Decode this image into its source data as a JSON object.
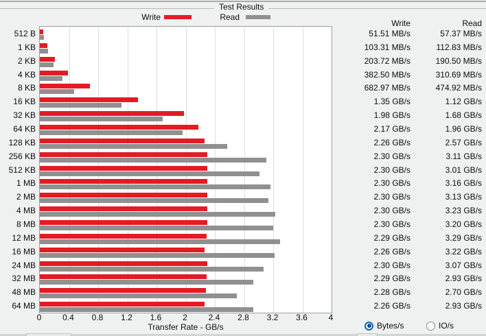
{
  "group_box": {
    "title": "Test Results"
  },
  "legend": {
    "write_label": "Write",
    "read_label": "Read",
    "write_color": "#e31b23",
    "read_color": "#909090"
  },
  "chart_data": {
    "type": "bar",
    "orientation": "horizontal",
    "title": "Test Results",
    "xlabel": "Transfer Rate - GB/s",
    "ylabel": "",
    "xlim": [
      0,
      4
    ],
    "xticks": [
      "0",
      "0.4",
      "0.8",
      "1.2",
      "1.6",
      "2",
      "2.4",
      "2.8",
      "3.2",
      "3.6",
      "4"
    ],
    "grid": true,
    "legend_position": "top",
    "categories": [
      "512 B",
      "1 KB",
      "2 KB",
      "4 KB",
      "8 KB",
      "16 KB",
      "32 KB",
      "64 KB",
      "128 KB",
      "256 KB",
      "512 KB",
      "1 MB",
      "2 MB",
      "4 MB",
      "8 MB",
      "12 MB",
      "16 MB",
      "24 MB",
      "32 MB",
      "48 MB",
      "64 MB"
    ],
    "series": [
      {
        "name": "Write",
        "color": "#e31b23",
        "values": [
          0.05151,
          0.10331,
          0.20372,
          0.3825,
          0.68297,
          1.35,
          1.98,
          2.17,
          2.26,
          2.3,
          2.3,
          2.3,
          2.3,
          2.3,
          2.3,
          2.29,
          2.26,
          2.3,
          2.29,
          2.28,
          2.26
        ]
      },
      {
        "name": "Read",
        "color": "#909090",
        "values": [
          0.05737,
          0.11283,
          0.1905,
          0.31069,
          0.47492,
          1.12,
          1.68,
          1.96,
          2.57,
          3.11,
          3.01,
          3.16,
          3.13,
          3.23,
          3.2,
          3.29,
          3.22,
          3.07,
          2.93,
          2.7,
          2.93
        ]
      }
    ]
  },
  "results_table": {
    "write_header": "Write",
    "read_header": "Read",
    "rows": [
      {
        "write": "51.51 MB/s",
        "read": "57.37 MB/s"
      },
      {
        "write": "103.31 MB/s",
        "read": "112.83 MB/s"
      },
      {
        "write": "203.72 MB/s",
        "read": "190.50 MB/s"
      },
      {
        "write": "382.50 MB/s",
        "read": "310.69 MB/s"
      },
      {
        "write": "682.97 MB/s",
        "read": "474.92 MB/s"
      },
      {
        "write": "1.35 GB/s",
        "read": "1.12 GB/s"
      },
      {
        "write": "1.98 GB/s",
        "read": "1.68 GB/s"
      },
      {
        "write": "2.17 GB/s",
        "read": "1.96 GB/s"
      },
      {
        "write": "2.26 GB/s",
        "read": "2.57 GB/s"
      },
      {
        "write": "2.30 GB/s",
        "read": "3.11 GB/s"
      },
      {
        "write": "2.30 GB/s",
        "read": "3.01 GB/s"
      },
      {
        "write": "2.30 GB/s",
        "read": "3.16 GB/s"
      },
      {
        "write": "2.30 GB/s",
        "read": "3.13 GB/s"
      },
      {
        "write": "2.30 GB/s",
        "read": "3.23 GB/s"
      },
      {
        "write": "2.30 GB/s",
        "read": "3.20 GB/s"
      },
      {
        "write": "2.29 GB/s",
        "read": "3.29 GB/s"
      },
      {
        "write": "2.26 GB/s",
        "read": "3.22 GB/s"
      },
      {
        "write": "2.30 GB/s",
        "read": "3.07 GB/s"
      },
      {
        "write": "2.29 GB/s",
        "read": "2.93 GB/s"
      },
      {
        "write": "2.28 GB/s",
        "read": "2.70 GB/s"
      },
      {
        "write": "2.26 GB/s",
        "read": "2.93 GB/s"
      }
    ]
  },
  "unit_toggle": {
    "accent_color": "#0a67b5",
    "options": [
      {
        "label": "Bytes/s",
        "selected": true
      },
      {
        "label": "IO/s",
        "selected": false
      }
    ]
  }
}
